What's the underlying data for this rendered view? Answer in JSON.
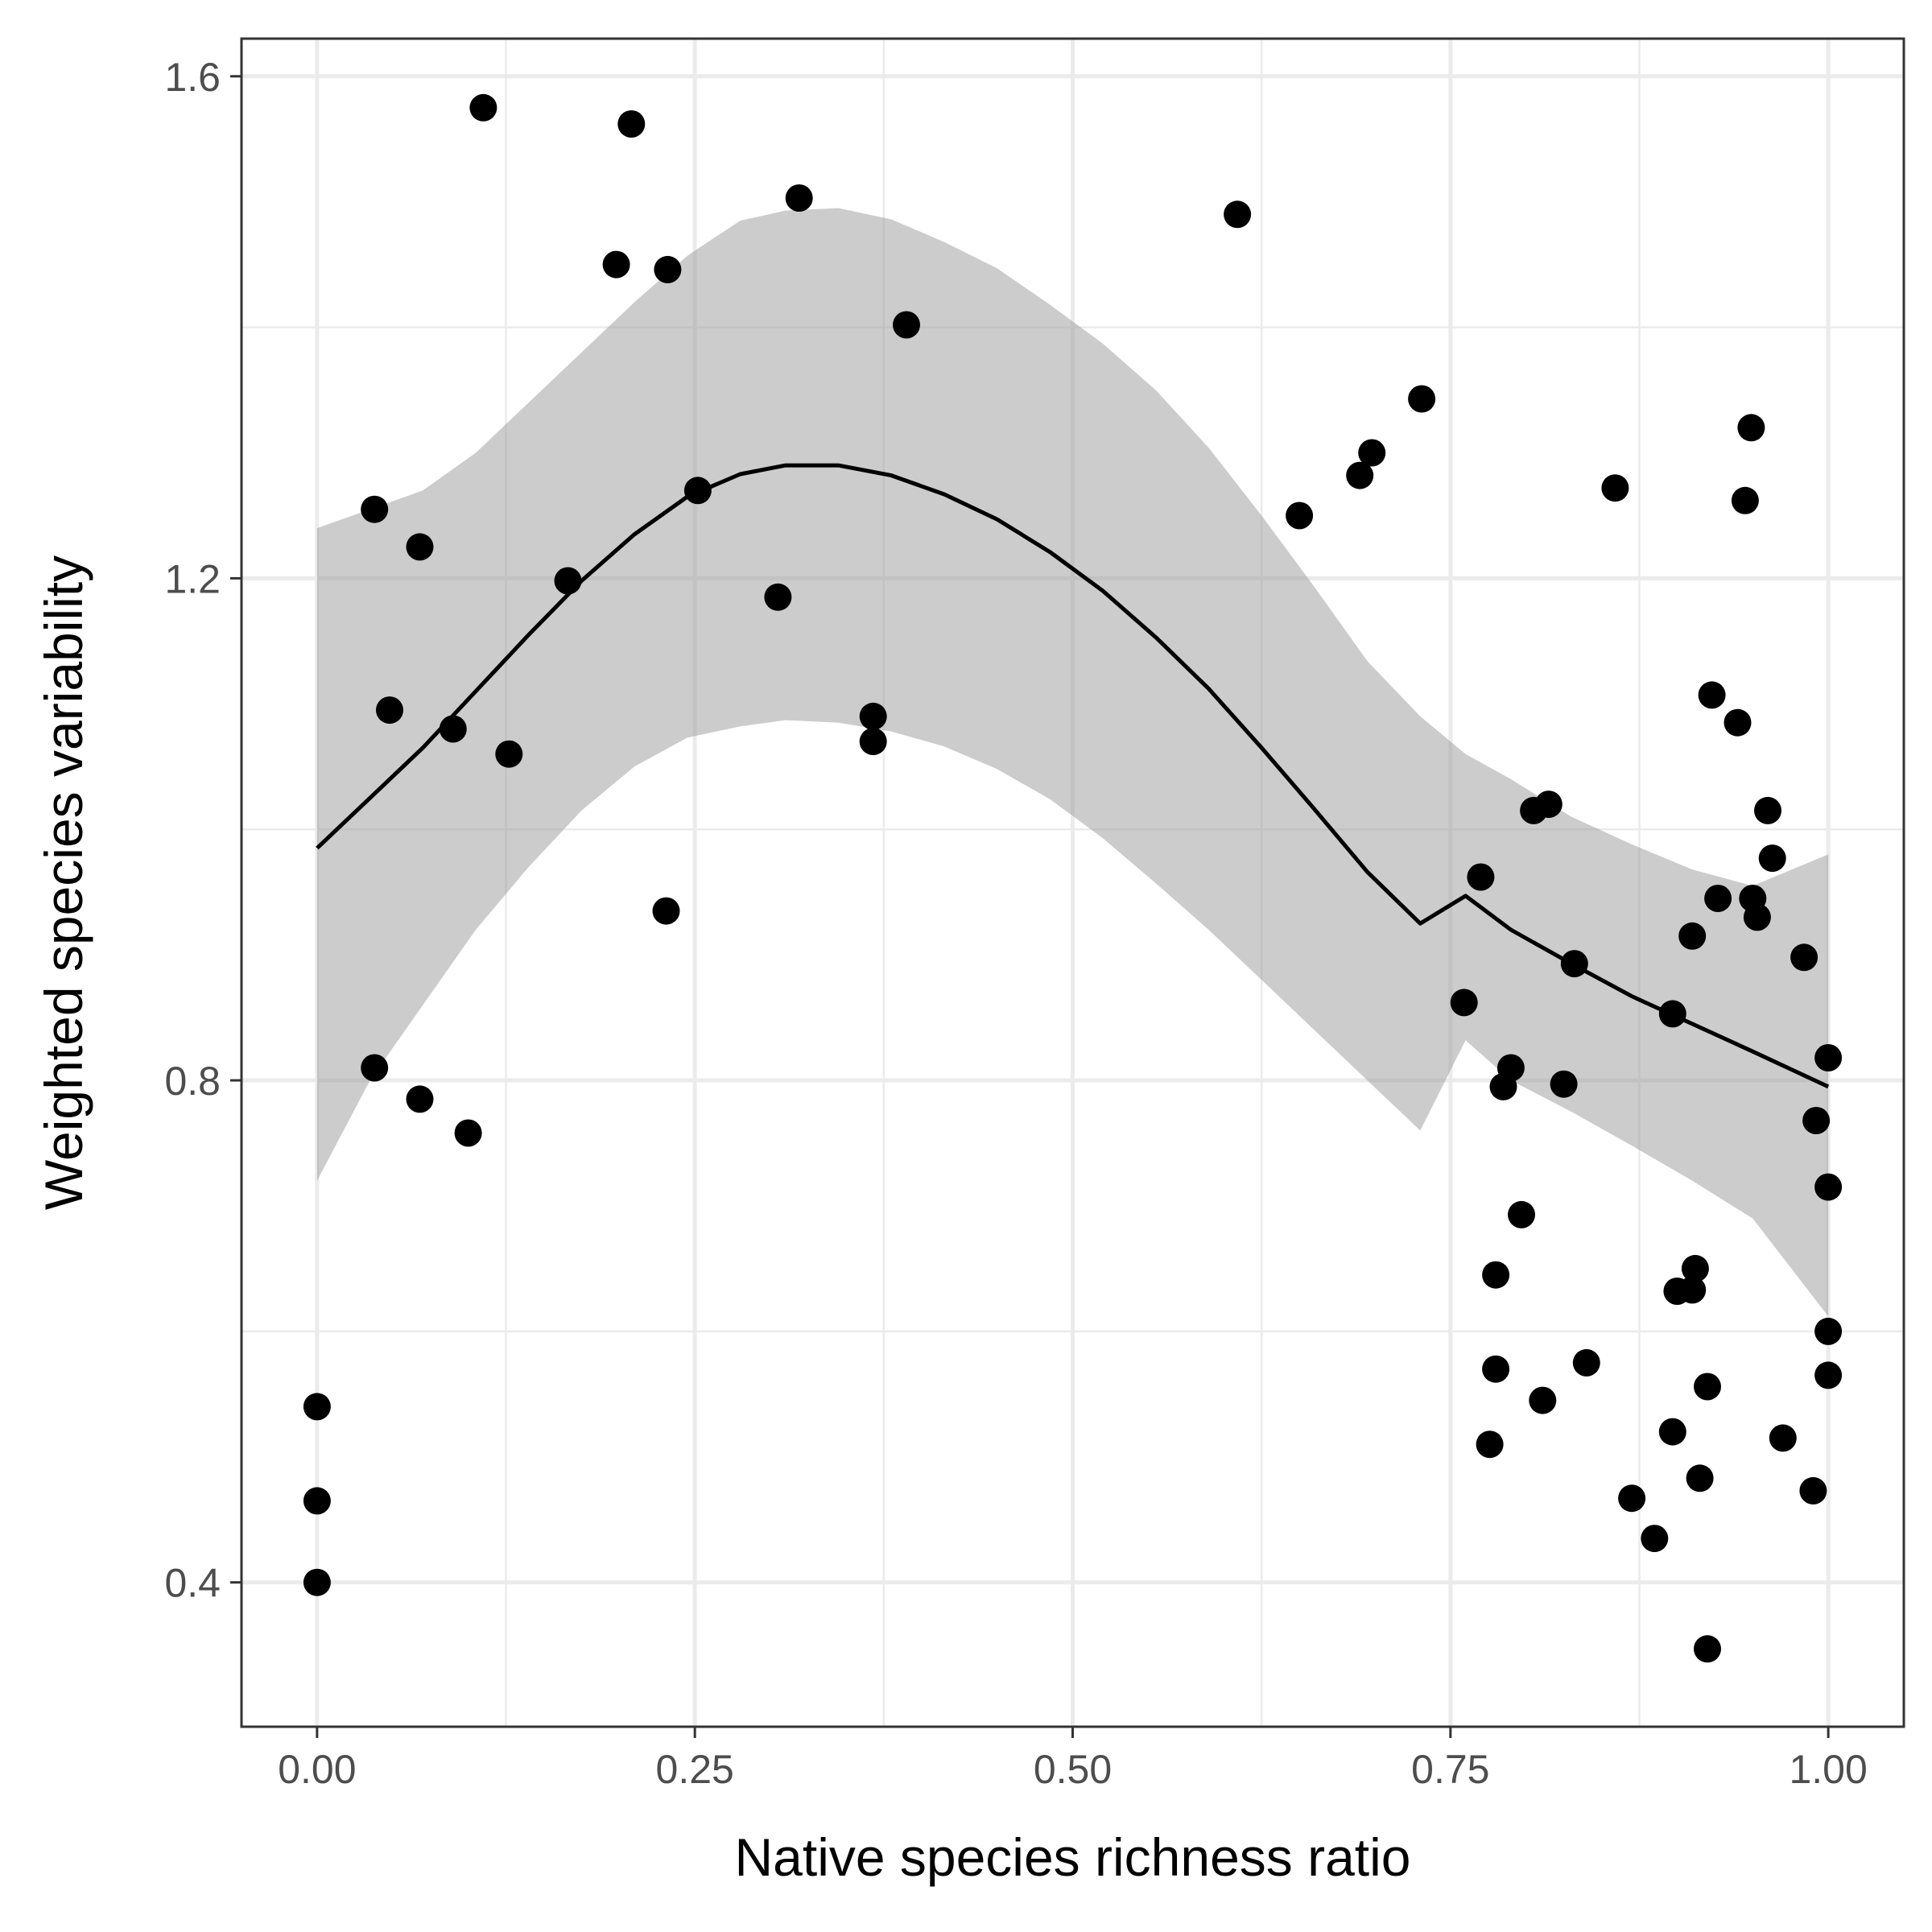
{
  "chart_data": {
    "type": "scatter",
    "title": "",
    "xlabel": "Native species richness ratio",
    "ylabel": "Weighted species variability",
    "xlim": [
      -0.05,
      1.05
    ],
    "ylim": [
      0.285,
      1.63
    ],
    "xticks": [
      0.0,
      0.25,
      0.5,
      0.75,
      1.0
    ],
    "xtick_labels": [
      "0.00",
      "0.25",
      "0.50",
      "0.75",
      "1.00"
    ],
    "yticks": [
      0.4,
      0.8,
      1.2,
      1.6
    ],
    "ytick_labels": [
      "0.4",
      "0.8",
      "1.2",
      "1.6"
    ],
    "grid": true,
    "theme": "bw",
    "colors": {
      "points": "#000000",
      "smooth_line": "#000000",
      "ribbon": "#999999",
      "grid": "#ebebeb",
      "panel_border": "#333333"
    },
    "points": [
      [
        0.0,
        0.54
      ],
      [
        0.0,
        0.465
      ],
      [
        0.0,
        0.4
      ],
      [
        0.038,
        1.255
      ],
      [
        0.038,
        0.81
      ],
      [
        0.048,
        1.095
      ],
      [
        0.068,
        1.225
      ],
      [
        0.068,
        0.785
      ],
      [
        0.09,
        1.08
      ],
      [
        0.1,
        0.758
      ],
      [
        0.11,
        1.575
      ],
      [
        0.127,
        1.06
      ],
      [
        0.166,
        1.198
      ],
      [
        0.198,
        1.45
      ],
      [
        0.208,
        1.562
      ],
      [
        0.232,
        1.446
      ],
      [
        0.231,
        0.935
      ],
      [
        0.252,
        1.27
      ],
      [
        0.305,
        1.185
      ],
      [
        0.319,
        1.503
      ],
      [
        0.368,
        1.09
      ],
      [
        0.368,
        1.07
      ],
      [
        0.39,
        1.402
      ],
      [
        0.609,
        1.49
      ],
      [
        0.65,
        1.25
      ],
      [
        0.69,
        1.282
      ],
      [
        0.698,
        1.3
      ],
      [
        0.731,
        1.343
      ],
      [
        0.759,
        0.862
      ],
      [
        0.77,
        0.962
      ],
      [
        0.776,
        0.51
      ],
      [
        0.78,
        0.57
      ],
      [
        0.78,
        0.645
      ],
      [
        0.785,
        0.795
      ],
      [
        0.79,
        0.81
      ],
      [
        0.797,
        0.693
      ],
      [
        0.805,
        1.015
      ],
      [
        0.811,
        0.545
      ],
      [
        0.815,
        1.02
      ],
      [
        0.825,
        0.797
      ],
      [
        0.832,
        0.893
      ],
      [
        0.84,
        0.575
      ],
      [
        0.859,
        1.272
      ],
      [
        0.87,
        0.467
      ],
      [
        0.885,
        0.435
      ],
      [
        0.897,
        0.853
      ],
      [
        0.897,
        0.52
      ],
      [
        0.9,
        0.632
      ],
      [
        0.91,
        0.633
      ],
      [
        0.91,
        0.915
      ],
      [
        0.912,
        0.65
      ],
      [
        0.915,
        0.483
      ],
      [
        0.92,
        0.556
      ],
      [
        0.92,
        0.347
      ],
      [
        0.923,
        1.107
      ],
      [
        0.927,
        0.945
      ],
      [
        0.94,
        1.085
      ],
      [
        0.945,
        1.262
      ],
      [
        0.949,
        1.32
      ],
      [
        0.95,
        0.945
      ],
      [
        0.953,
        0.93
      ],
      [
        0.96,
        1.015
      ],
      [
        0.963,
        0.977
      ],
      [
        0.97,
        0.515
      ],
      [
        0.984,
        0.898
      ],
      [
        0.99,
        0.473
      ],
      [
        0.992,
        0.768
      ],
      [
        1.0,
        0.818
      ],
      [
        1.0,
        0.715
      ],
      [
        1.0,
        0.6
      ],
      [
        1.0,
        0.565
      ]
    ],
    "smooth": {
      "x": [
        0.0,
        0.035,
        0.07,
        0.105,
        0.14,
        0.175,
        0.21,
        0.245,
        0.28,
        0.31,
        0.345,
        0.38,
        0.415,
        0.45,
        0.485,
        0.52,
        0.555,
        0.59,
        0.625,
        0.66,
        0.695,
        0.73,
        0.76,
        0.79,
        0.83,
        0.87,
        0.91,
        0.95,
        1.0
      ],
      "fit": [
        0.985,
        1.025,
        1.065,
        1.11,
        1.155,
        1.198,
        1.235,
        1.265,
        1.283,
        1.29,
        1.29,
        1.282,
        1.267,
        1.247,
        1.221,
        1.19,
        1.153,
        1.112,
        1.065,
        1.016,
        0.966,
        0.925,
        0.947,
        0.92,
        0.893,
        0.867,
        0.845,
        0.823,
        0.795
      ],
      "lower": [
        0.72,
        0.8,
        0.86,
        0.92,
        0.97,
        1.015,
        1.05,
        1.073,
        1.082,
        1.087,
        1.085,
        1.078,
        1.066,
        1.048,
        1.024,
        0.993,
        0.957,
        0.92,
        0.88,
        0.84,
        0.8,
        0.76,
        0.832,
        0.8,
        0.775,
        0.748,
        0.72,
        0.69,
        0.612
      ],
      "upper": [
        1.24,
        1.255,
        1.27,
        1.3,
        1.34,
        1.38,
        1.42,
        1.457,
        1.485,
        1.493,
        1.495,
        1.486,
        1.468,
        1.447,
        1.418,
        1.387,
        1.35,
        1.304,
        1.25,
        1.193,
        1.134,
        1.09,
        1.06,
        1.04,
        1.01,
        0.988,
        0.968,
        0.955,
        0.98
      ]
    }
  }
}
